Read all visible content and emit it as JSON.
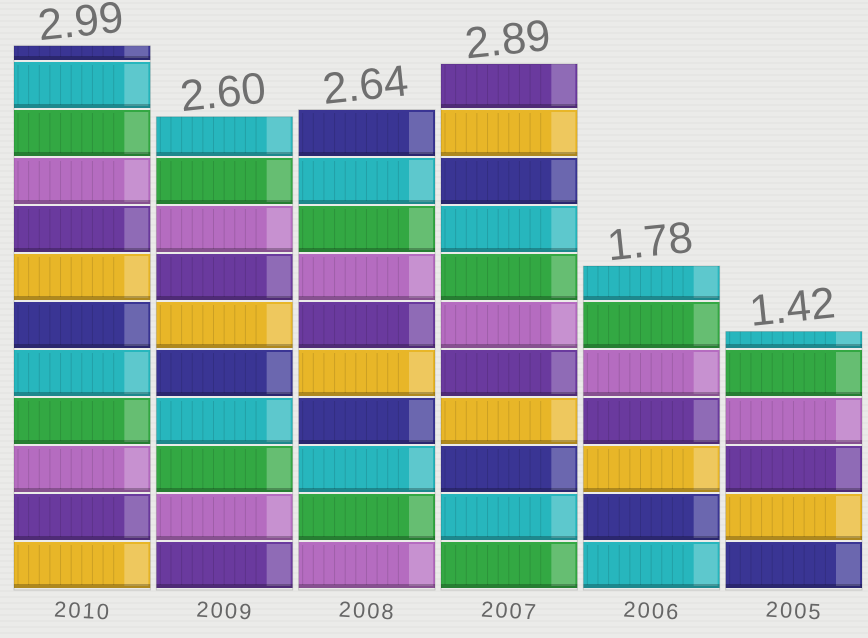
{
  "chart_data": {
    "type": "bar",
    "categories": [
      "2010",
      "2009",
      "2008",
      "2007",
      "2006",
      "2005"
    ],
    "values": [
      2.99,
      2.6,
      2.64,
      2.89,
      1.78,
      1.42
    ],
    "value_labels": [
      "2.99",
      "2.60",
      "2.64",
      "2.89",
      "1.78",
      "1.42"
    ]
  }
}
